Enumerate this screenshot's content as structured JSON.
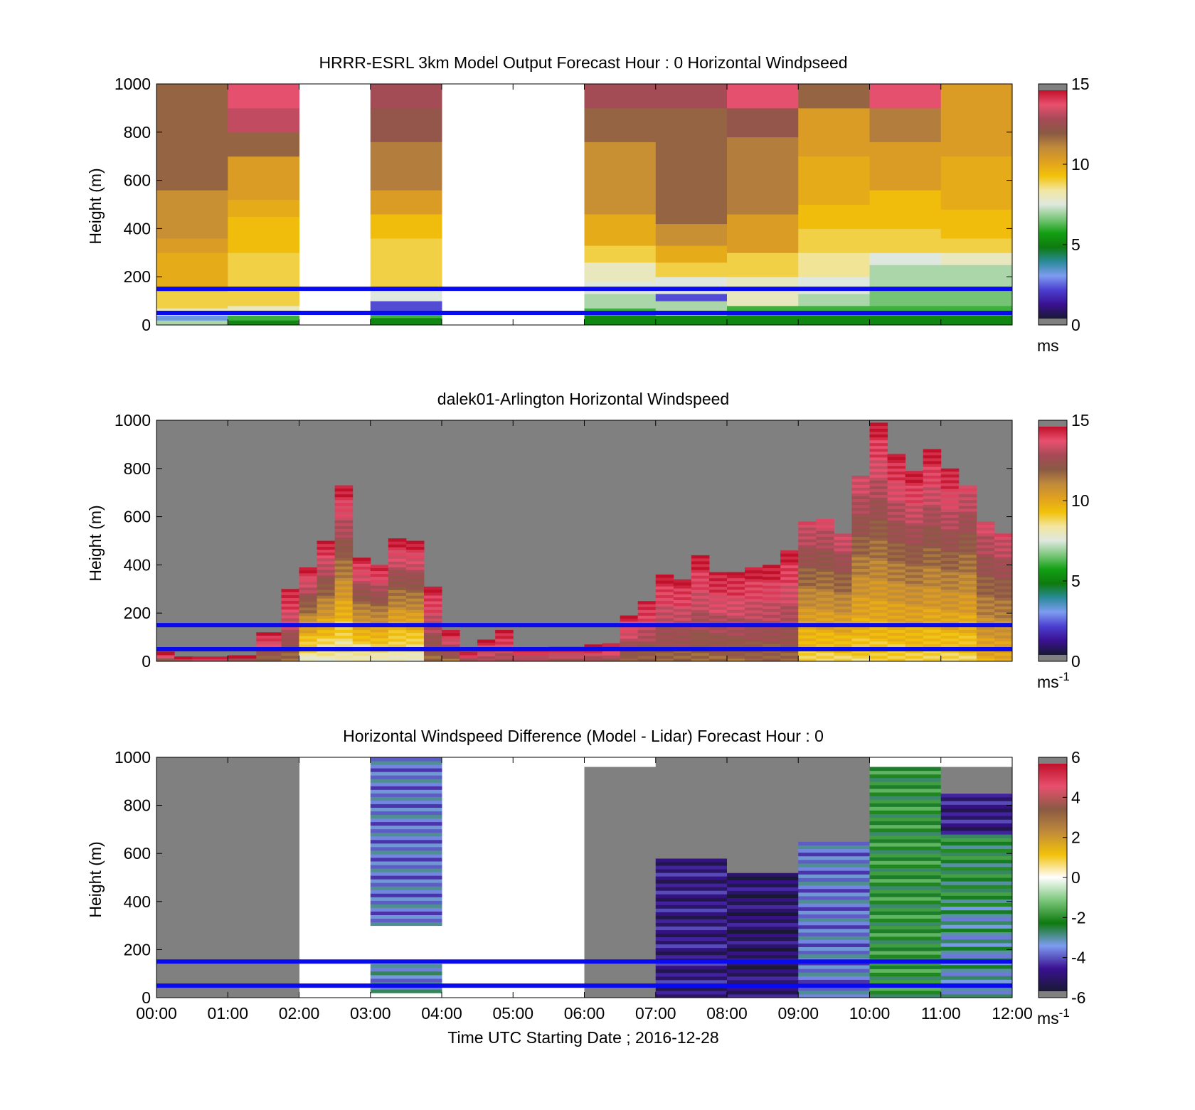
{
  "figure_footer": {
    "xlabel": "Time UTC  Starting Date ; 2016-12-28"
  },
  "colors": {
    "missing": "#808080",
    "reference_lines": "#0a0aee",
    "windspeed_colormap": [
      "#191934",
      "#3a1192",
      "#4b3fd0",
      "#7d9cf0",
      "#2a8a9a",
      "#0e7a0e",
      "#13a013",
      "#7cc77c",
      "#dfe8df",
      "#f2e6a0",
      "#f2c20a",
      "#e0a020",
      "#c08a3a",
      "#8a5a44",
      "#a74a58",
      "#e8506e",
      "#c0102a"
    ],
    "difference_colormap": [
      "#191934",
      "#3a1192",
      "#7d9cf0",
      "#0e7a0e",
      "#7cc77c",
      "#ffffff",
      "#f2c20a",
      "#c08a3a",
      "#8a5a44",
      "#e8506e",
      "#c0102a"
    ]
  },
  "chart_data": [
    {
      "type": "heatmap",
      "title": "HRRR-ESRL 3km Model Output   Forecast Hour : 0 Horizontal Windpseed",
      "ylabel": "Height (m)",
      "ylim": [
        0,
        1000
      ],
      "yticks": [
        0,
        200,
        400,
        600,
        800,
        1000
      ],
      "xlim_hours": [
        0,
        12
      ],
      "xtick_labels": [],
      "reference_lines_m": [
        150,
        50
      ],
      "colorbar": {
        "min": 0,
        "max": 15,
        "ticks": [
          0,
          5,
          10,
          15
        ],
        "unit": "ms",
        "unit_sup": ""
      },
      "columns": [
        {
          "start": 0,
          "end": 1,
          "values": [
            [
              0,
              20,
              7
            ],
            [
              20,
              40,
              3
            ],
            [
              40,
              70,
              8
            ],
            [
              70,
              140,
              9
            ],
            [
              140,
              300,
              10
            ],
            [
              300,
              360,
              10.5
            ],
            [
              360,
              560,
              11
            ],
            [
              560,
              1000,
              12
            ]
          ]
        },
        {
          "start": 1,
          "end": 2,
          "values": [
            [
              0,
              20,
              5
            ],
            [
              20,
              40,
              6
            ],
            [
              40,
              80,
              8
            ],
            [
              80,
              300,
              9
            ],
            [
              300,
              450,
              9.5
            ],
            [
              450,
              520,
              10
            ],
            [
              520,
              700,
              10.5
            ],
            [
              700,
              800,
              12
            ],
            [
              800,
              900,
              13.5
            ],
            [
              900,
              1000,
              14
            ]
          ]
        },
        {
          "start": 2,
          "end": 3,
          "values": []
        },
        {
          "start": 3,
          "end": 4,
          "values": [
            [
              0,
              30,
              5
            ],
            [
              30,
              60,
              6
            ],
            [
              60,
              100,
              2
            ],
            [
              100,
              150,
              7.5
            ],
            [
              150,
              360,
              9
            ],
            [
              360,
              460,
              9.5
            ],
            [
              460,
              560,
              10.5
            ],
            [
              560,
              760,
              11.5
            ],
            [
              760,
              900,
              12.5
            ],
            [
              900,
              1000,
              13
            ]
          ]
        },
        {
          "start": 4,
          "end": 5,
          "values": []
        },
        {
          "start": 5,
          "end": 6,
          "values": []
        },
        {
          "start": 6,
          "end": 7,
          "values": [
            [
              0,
              40,
              5
            ],
            [
              40,
              70,
              6
            ],
            [
              70,
              130,
              7
            ],
            [
              130,
              180,
              7.5
            ],
            [
              180,
              260,
              8
            ],
            [
              260,
              330,
              9
            ],
            [
              330,
              460,
              10
            ],
            [
              460,
              760,
              11
            ],
            [
              760,
              900,
              12
            ],
            [
              900,
              1000,
              13
            ]
          ]
        },
        {
          "start": 7,
          "end": 8,
          "values": [
            [
              0,
              40,
              5
            ],
            [
              40,
              100,
              7
            ],
            [
              100,
              130,
              2
            ],
            [
              130,
              200,
              7.5
            ],
            [
              200,
              260,
              9
            ],
            [
              260,
              330,
              10
            ],
            [
              330,
              420,
              11
            ],
            [
              420,
              900,
              12
            ],
            [
              900,
              1000,
              13
            ]
          ]
        },
        {
          "start": 8,
          "end": 9,
          "values": [
            [
              0,
              40,
              5
            ],
            [
              40,
              80,
              6
            ],
            [
              80,
              200,
              8
            ],
            [
              200,
              300,
              9
            ],
            [
              300,
              460,
              10.5
            ],
            [
              460,
              780,
              11.5
            ],
            [
              780,
              900,
              12.5
            ],
            [
              900,
              1000,
              14
            ]
          ]
        },
        {
          "start": 9,
          "end": 10,
          "values": [
            [
              0,
              40,
              5
            ],
            [
              40,
              80,
              6
            ],
            [
              80,
              130,
              7
            ],
            [
              130,
              200,
              7.5
            ],
            [
              200,
              300,
              8.5
            ],
            [
              300,
              400,
              9
            ],
            [
              400,
              500,
              9.5
            ],
            [
              500,
              700,
              10
            ],
            [
              700,
              900,
              10.5
            ],
            [
              900,
              1000,
              12
            ]
          ]
        },
        {
          "start": 10,
          "end": 11,
          "values": [
            [
              0,
              40,
              5
            ],
            [
              40,
              80,
              6
            ],
            [
              80,
              150,
              6.5
            ],
            [
              150,
              250,
              7
            ],
            [
              250,
              300,
              7.5
            ],
            [
              300,
              400,
              9
            ],
            [
              400,
              560,
              9.5
            ],
            [
              560,
              760,
              10.5
            ],
            [
              760,
              900,
              11.5
            ],
            [
              900,
              1000,
              14
            ]
          ]
        },
        {
          "start": 11,
          "end": 12,
          "values": [
            [
              0,
              40,
              5
            ],
            [
              40,
              80,
              6
            ],
            [
              80,
              150,
              6.5
            ],
            [
              150,
              250,
              7
            ],
            [
              250,
              300,
              8
            ],
            [
              300,
              360,
              9
            ],
            [
              360,
              480,
              9.5
            ],
            [
              480,
              700,
              10
            ],
            [
              700,
              1000,
              10.5
            ]
          ]
        }
      ]
    },
    {
      "type": "heatmap",
      "title": "dalek01-Arlington  Horizontal Windspeed",
      "ylabel": "Height (m)",
      "ylim": [
        0,
        1000
      ],
      "yticks": [
        0,
        200,
        400,
        600,
        800,
        1000
      ],
      "xlim_hours": [
        0,
        12
      ],
      "xtick_labels": [],
      "reference_lines_m": [
        150,
        50
      ],
      "colorbar": {
        "min": 0,
        "max": 15,
        "ticks": [
          0,
          5,
          10,
          15
        ],
        "unit": "ms",
        "unit_sup": "-1"
      },
      "columns": [
        {
          "start": 0.0,
          "end": 0.25,
          "top": 40,
          "low": 13,
          "high": 15
        },
        {
          "start": 0.25,
          "end": 0.5,
          "top": 20,
          "low": 13,
          "high": 15
        },
        {
          "start": 0.5,
          "end": 1.0,
          "top": 20,
          "low": 13,
          "high": 15
        },
        {
          "start": 1.0,
          "end": 1.4,
          "top": 25,
          "low": 13,
          "high": 15
        },
        {
          "start": 1.4,
          "end": 1.75,
          "top": 120,
          "low": 12,
          "high": 15
        },
        {
          "start": 1.75,
          "end": 2.0,
          "top": 300,
          "low": 12,
          "high": 15
        },
        {
          "start": 2.0,
          "end": 2.25,
          "top": 390,
          "low": 8,
          "high": 15
        },
        {
          "start": 2.25,
          "end": 2.5,
          "top": 500,
          "low": 8,
          "high": 15
        },
        {
          "start": 2.5,
          "end": 2.75,
          "top": 730,
          "low": 8,
          "high": 15
        },
        {
          "start": 2.75,
          "end": 3.0,
          "top": 430,
          "low": 8,
          "high": 15
        },
        {
          "start": 3.0,
          "end": 3.25,
          "top": 400,
          "low": 8,
          "high": 15
        },
        {
          "start": 3.25,
          "end": 3.5,
          "top": 510,
          "low": 8,
          "high": 15
        },
        {
          "start": 3.5,
          "end": 3.75,
          "top": 500,
          "low": 8,
          "high": 15
        },
        {
          "start": 3.75,
          "end": 4.0,
          "top": 310,
          "low": 12,
          "high": 15
        },
        {
          "start": 4.0,
          "end": 4.25,
          "top": 130,
          "low": 12,
          "high": 15
        },
        {
          "start": 4.25,
          "end": 4.5,
          "top": 40,
          "low": 13,
          "high": 15
        },
        {
          "start": 4.5,
          "end": 4.75,
          "top": 90,
          "low": 13,
          "high": 15
        },
        {
          "start": 4.75,
          "end": 5.0,
          "top": 130,
          "low": 13,
          "high": 15
        },
        {
          "start": 5.0,
          "end": 5.5,
          "top": 50,
          "low": 13,
          "high": 15
        },
        {
          "start": 5.5,
          "end": 6.0,
          "top": 60,
          "low": 13,
          "high": 15
        },
        {
          "start": 6.0,
          "end": 6.25,
          "top": 70,
          "low": 13,
          "high": 15
        },
        {
          "start": 6.25,
          "end": 6.5,
          "top": 75,
          "low": 13,
          "high": 15
        },
        {
          "start": 6.5,
          "end": 6.75,
          "top": 190,
          "low": 12,
          "high": 15
        },
        {
          "start": 6.75,
          "end": 7.0,
          "top": 250,
          "low": 12,
          "high": 15
        },
        {
          "start": 7.0,
          "end": 7.25,
          "top": 360,
          "low": 12,
          "high": 15
        },
        {
          "start": 7.25,
          "end": 7.5,
          "top": 340,
          "low": 12,
          "high": 15
        },
        {
          "start": 7.5,
          "end": 7.75,
          "top": 440,
          "low": 12,
          "high": 15
        },
        {
          "start": 7.75,
          "end": 8.0,
          "top": 370,
          "low": 12,
          "high": 15
        },
        {
          "start": 8.0,
          "end": 8.25,
          "top": 370,
          "low": 12,
          "high": 15
        },
        {
          "start": 8.25,
          "end": 8.5,
          "top": 390,
          "low": 12,
          "high": 15
        },
        {
          "start": 8.5,
          "end": 8.75,
          "top": 400,
          "low": 12,
          "high": 15
        },
        {
          "start": 8.75,
          "end": 9.0,
          "top": 460,
          "low": 12,
          "high": 15
        },
        {
          "start": 9.0,
          "end": 9.25,
          "top": 580,
          "low": 9,
          "high": 14
        },
        {
          "start": 9.25,
          "end": 9.5,
          "top": 590,
          "low": 9,
          "high": 14
        },
        {
          "start": 9.5,
          "end": 9.75,
          "top": 530,
          "low": 9,
          "high": 14
        },
        {
          "start": 9.75,
          "end": 10.0,
          "top": 770,
          "low": 9,
          "high": 14
        },
        {
          "start": 10.0,
          "end": 10.25,
          "top": 990,
          "low": 9,
          "high": 15
        },
        {
          "start": 10.25,
          "end": 10.5,
          "top": 860,
          "low": 9,
          "high": 15
        },
        {
          "start": 10.5,
          "end": 10.75,
          "top": 790,
          "low": 9,
          "high": 15
        },
        {
          "start": 10.75,
          "end": 11.0,
          "top": 880,
          "low": 9,
          "high": 15
        },
        {
          "start": 11.0,
          "end": 11.25,
          "top": 800,
          "low": 9,
          "high": 15
        },
        {
          "start": 11.25,
          "end": 11.5,
          "top": 730,
          "low": 9,
          "high": 14
        },
        {
          "start": 11.5,
          "end": 11.75,
          "top": 580,
          "low": 10,
          "high": 14
        },
        {
          "start": 11.75,
          "end": 12.0,
          "top": 530,
          "low": 10,
          "high": 14
        }
      ]
    },
    {
      "type": "heatmap",
      "title": "Horizontal Windspeed Difference (Model - Lidar) Forecast Hour : 0",
      "ylabel": "Height (m)",
      "ylim": [
        0,
        1000
      ],
      "yticks": [
        0,
        200,
        400,
        600,
        800,
        1000
      ],
      "xlim_hours": [
        0,
        12
      ],
      "xtick_labels": [
        "00:00",
        "01:00",
        "02:00",
        "03:00",
        "04:00",
        "05:00",
        "06:00",
        "07:00",
        "08:00",
        "09:00",
        "10:00",
        "11:00",
        "12:00"
      ],
      "reference_lines_m": [
        150,
        50
      ],
      "colorbar": {
        "min": -6,
        "max": 6,
        "ticks": [
          -6,
          -4,
          -2,
          0,
          2,
          4,
          6
        ],
        "unit": "ms",
        "unit_sup": "-1"
      },
      "columns": [
        {
          "start": 0,
          "end": 1,
          "values": [
            [
              0,
              1000,
              "missing"
            ]
          ]
        },
        {
          "start": 1,
          "end": 2,
          "values": [
            [
              0,
              1000,
              "missing"
            ]
          ]
        },
        {
          "start": 2,
          "end": 3,
          "values": []
        },
        {
          "start": 3,
          "end": 4,
          "values": [
            [
              20,
              140,
              -3.5
            ],
            [
              300,
              1000,
              -3.8
            ]
          ]
        },
        {
          "start": 4,
          "end": 5,
          "values": []
        },
        {
          "start": 5,
          "end": 6,
          "values": []
        },
        {
          "start": 6,
          "end": 7,
          "values": [
            [
              0,
              960,
              "missing"
            ]
          ]
        },
        {
          "start": 7,
          "end": 8,
          "values": [
            [
              0,
              580,
              -5
            ],
            [
              580,
              1000,
              "missing"
            ]
          ]
        },
        {
          "start": 8,
          "end": 9,
          "values": [
            [
              0,
              520,
              -5.3
            ],
            [
              520,
              1000,
              "missing"
            ]
          ]
        },
        {
          "start": 9,
          "end": 10,
          "values": [
            [
              0,
              650,
              -3.8
            ],
            [
              650,
              1000,
              "missing"
            ]
          ]
        },
        {
          "start": 10,
          "end": 11,
          "values": [
            [
              0,
              960,
              -2.2
            ]
          ]
        },
        {
          "start": 11,
          "end": 12,
          "values": [
            [
              0,
              380,
              -3.2
            ],
            [
              380,
              680,
              -2.5
            ],
            [
              680,
              850,
              -5
            ],
            [
              850,
              960,
              "missing"
            ]
          ]
        }
      ]
    }
  ]
}
